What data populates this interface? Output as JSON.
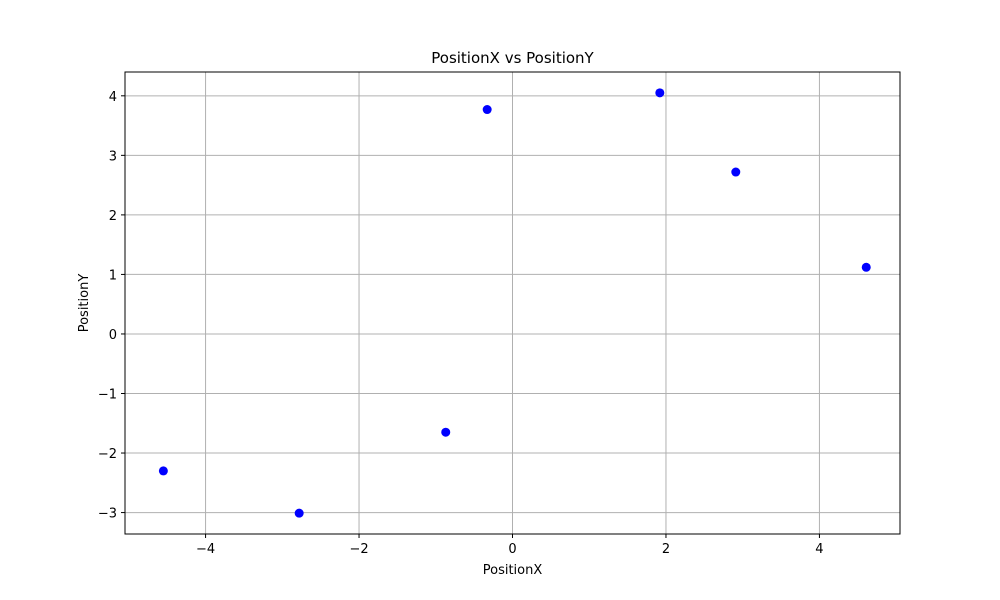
{
  "chart_data": {
    "type": "scatter",
    "title": "PositionX vs PositionY",
    "xlabel": "PositionX",
    "ylabel": "PositionY",
    "xlim": [
      -5.05,
      5.05
    ],
    "ylim": [
      -3.36,
      4.4
    ],
    "xticks": [
      -4,
      -2,
      0,
      2,
      4
    ],
    "yticks": [
      -3,
      -2,
      -1,
      0,
      1,
      2,
      3,
      4
    ],
    "grid": true,
    "marker_color": "#0000ff",
    "points": [
      {
        "x": -4.55,
        "y": -2.3
      },
      {
        "x": -2.78,
        "y": -3.01
      },
      {
        "x": -0.87,
        "y": -1.65
      },
      {
        "x": -0.33,
        "y": 3.77
      },
      {
        "x": 1.92,
        "y": 4.05
      },
      {
        "x": 2.91,
        "y": 2.72
      },
      {
        "x": 4.61,
        "y": 1.12
      }
    ]
  }
}
